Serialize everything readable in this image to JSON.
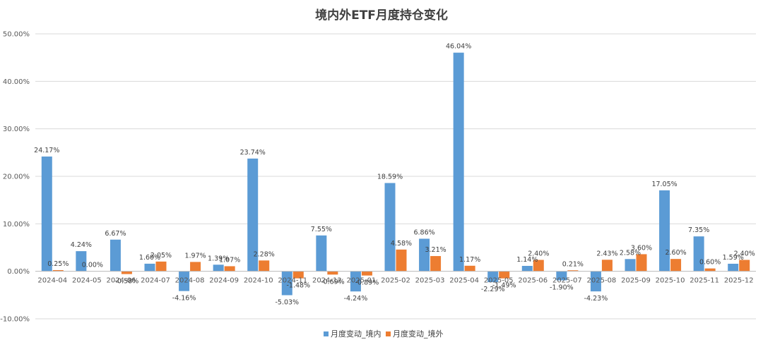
{
  "chart_data": {
    "type": "bar",
    "title": "境内外ETF月度持仓变化",
    "categories": [
      "2024-04",
      "2024-05",
      "2024-06",
      "2024-07",
      "2024-08",
      "2024-09",
      "2024-10",
      "2024-11",
      "2024-12",
      "2025-01",
      "2025-02",
      "2025-03",
      "2025-04",
      "2025-05",
      "2025-06",
      "2025-07",
      "2025-08",
      "2025-09",
      "2025-10",
      "2025-11",
      "2025-12"
    ],
    "series": [
      {
        "name": "月度变动_境内",
        "color": "#5B9BD5",
        "values": [
          24.17,
          4.24,
          6.67,
          1.6,
          -4.16,
          1.39,
          23.74,
          -5.03,
          7.55,
          -4.24,
          18.59,
          6.86,
          46.04,
          -2.29,
          1.14,
          -1.9,
          -4.23,
          2.58,
          17.05,
          7.35,
          1.59
        ],
        "labels": [
          "24.17%",
          "4.24%",
          "6.67%",
          "1.60%",
          "-4.16%",
          "1.39%",
          "23.74%",
          "-5.03%",
          "7.55%",
          "-4.24%",
          "18.59%",
          "6.86%",
          "46.04%",
          "-2.29%",
          "1.14%",
          "-1.90%",
          "-4.23%",
          "2.58%",
          "17.05%",
          "7.35%",
          "1.59%"
        ]
      },
      {
        "name": "月度变动_境外",
        "color": "#ED7D31",
        "values": [
          0.25,
          0.0,
          -0.58,
          2.05,
          1.97,
          1.07,
          2.28,
          -1.48,
          -0.69,
          -0.89,
          4.58,
          3.21,
          1.17,
          -1.49,
          2.4,
          0.21,
          2.43,
          3.6,
          2.6,
          0.6,
          2.4
        ],
        "labels": [
          "0.25%",
          "0.00%",
          "-0.58%",
          "2.05%",
          "1.97%",
          "1.07%",
          "2.28%",
          "-1.48%",
          "-0.69%",
          "-0.89%",
          "4.58%",
          "3.21%",
          "1.17%",
          "-1.49%",
          "2.40%",
          "0.21%",
          "2.43%",
          "3.60%",
          "2.60%",
          "0.60%",
          "2.40%"
        ]
      }
    ],
    "ylim": [
      -10,
      50
    ],
    "yticks": [
      "-10.00%",
      "0.00%",
      "10.00%",
      "20.00%",
      "30.00%",
      "40.00%",
      "50.00%"
    ],
    "grid": true,
    "legend": "bottom"
  }
}
